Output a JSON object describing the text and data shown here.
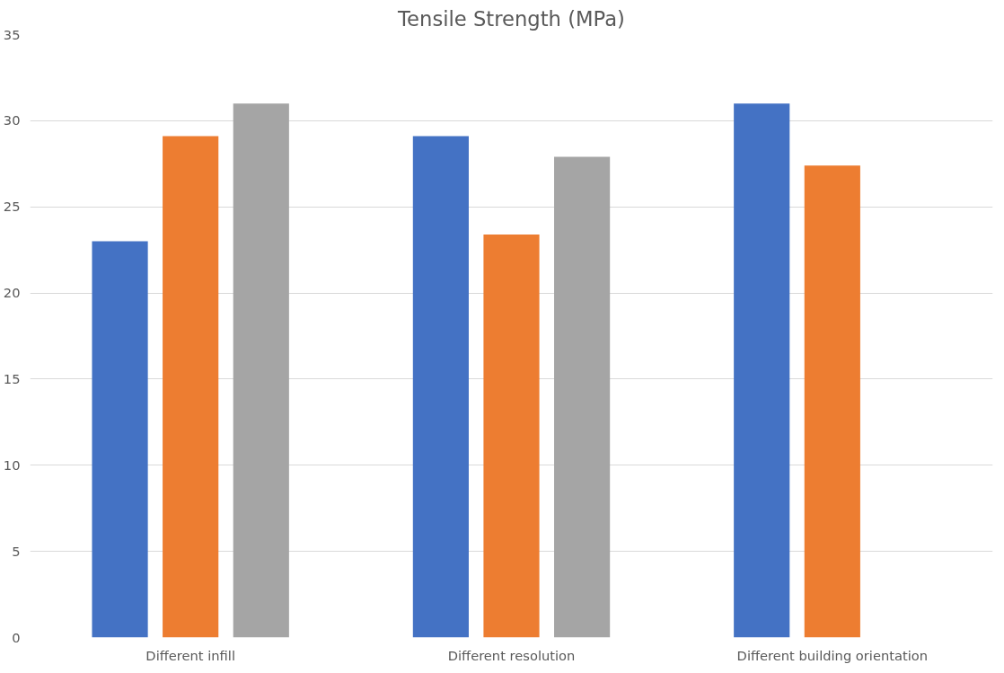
{
  "chart_data": {
    "type": "bar",
    "title": "Tensile Strength (MPa)",
    "categories": [
      "Different infill",
      "Different resolution",
      "Different building orientation"
    ],
    "series": [
      {
        "color": "#4472c4",
        "values": [
          23,
          29.1,
          31
        ]
      },
      {
        "color": "#ed7d31",
        "values": [
          29.1,
          23.4,
          27.4
        ]
      },
      {
        "color": "#a5a5a5",
        "values": [
          31,
          27.9,
          null
        ]
      }
    ],
    "ylim": [
      0,
      35
    ],
    "yticks": [
      0,
      5,
      10,
      15,
      20,
      25,
      30,
      35
    ],
    "grid": "y"
  }
}
